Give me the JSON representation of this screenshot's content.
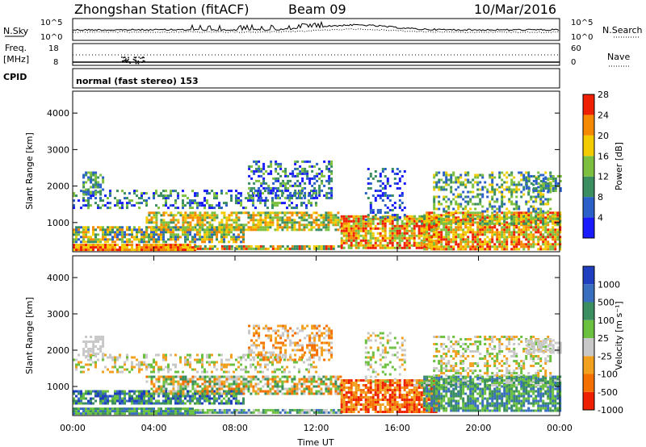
{
  "header": {
    "station": "Zhongshan Station (fitACF)",
    "beam": "Beam 09",
    "date": "10/Mar/2016"
  },
  "top_panels": {
    "nsky_label": "N.Sky",
    "nsky_ticks": [
      "10^5",
      "10^0"
    ],
    "nsearch_label": "N.Search",
    "nsearch_ticks": [
      "10^5",
      "10^0"
    ],
    "freq_label_1": "Freq.",
    "freq_label_2": "[MHz]",
    "freq_ticks": [
      "18",
      "8"
    ],
    "nave_label": "Nave",
    "nave_ticks": [
      "60",
      "0"
    ],
    "cpid_label": "CPID",
    "cpid_text": "normal (fast stereo) 153"
  },
  "chart_data": [
    {
      "type": "heatmap",
      "name": "power",
      "ylabel": "Slant Range [km]",
      "xlabel": "",
      "yticks": [
        "1000",
        "2000",
        "3000",
        "4000"
      ],
      "ylim": [
        200,
        4600
      ],
      "colorbar_label": "Power [dB]",
      "colorbar_ticks": [
        "4",
        "8",
        "12",
        "16",
        "20",
        "24",
        "28"
      ],
      "colorbar_colors": [
        "#1a1aff",
        "#2a60c8",
        "#3a8e60",
        "#7dc040",
        "#f2cc00",
        "#f58a00",
        "#ee2000"
      ]
    },
    {
      "type": "heatmap",
      "name": "velocity",
      "ylabel": "Slant Range [km]",
      "xlabel": "Time UT",
      "xticks": [
        "00:00",
        "04:00",
        "08:00",
        "12:00",
        "16:00",
        "20:00",
        "00:00"
      ],
      "yticks": [
        "1000",
        "2000",
        "3000",
        "4000"
      ],
      "ylim": [
        200,
        4600
      ],
      "colorbar_label": "Velocity [m s⁻¹]",
      "colorbar_ticks": [
        "1000",
        "500",
        "100",
        "25",
        "-25",
        "-100",
        "-500",
        "-1000"
      ],
      "colorbar_colors": [
        "#1f3fbf",
        "#3a6fc0",
        "#3a8e60",
        "#6cc040",
        "#c8c8c8",
        "#f2a020",
        "#f57000",
        "#ee2000"
      ]
    }
  ]
}
